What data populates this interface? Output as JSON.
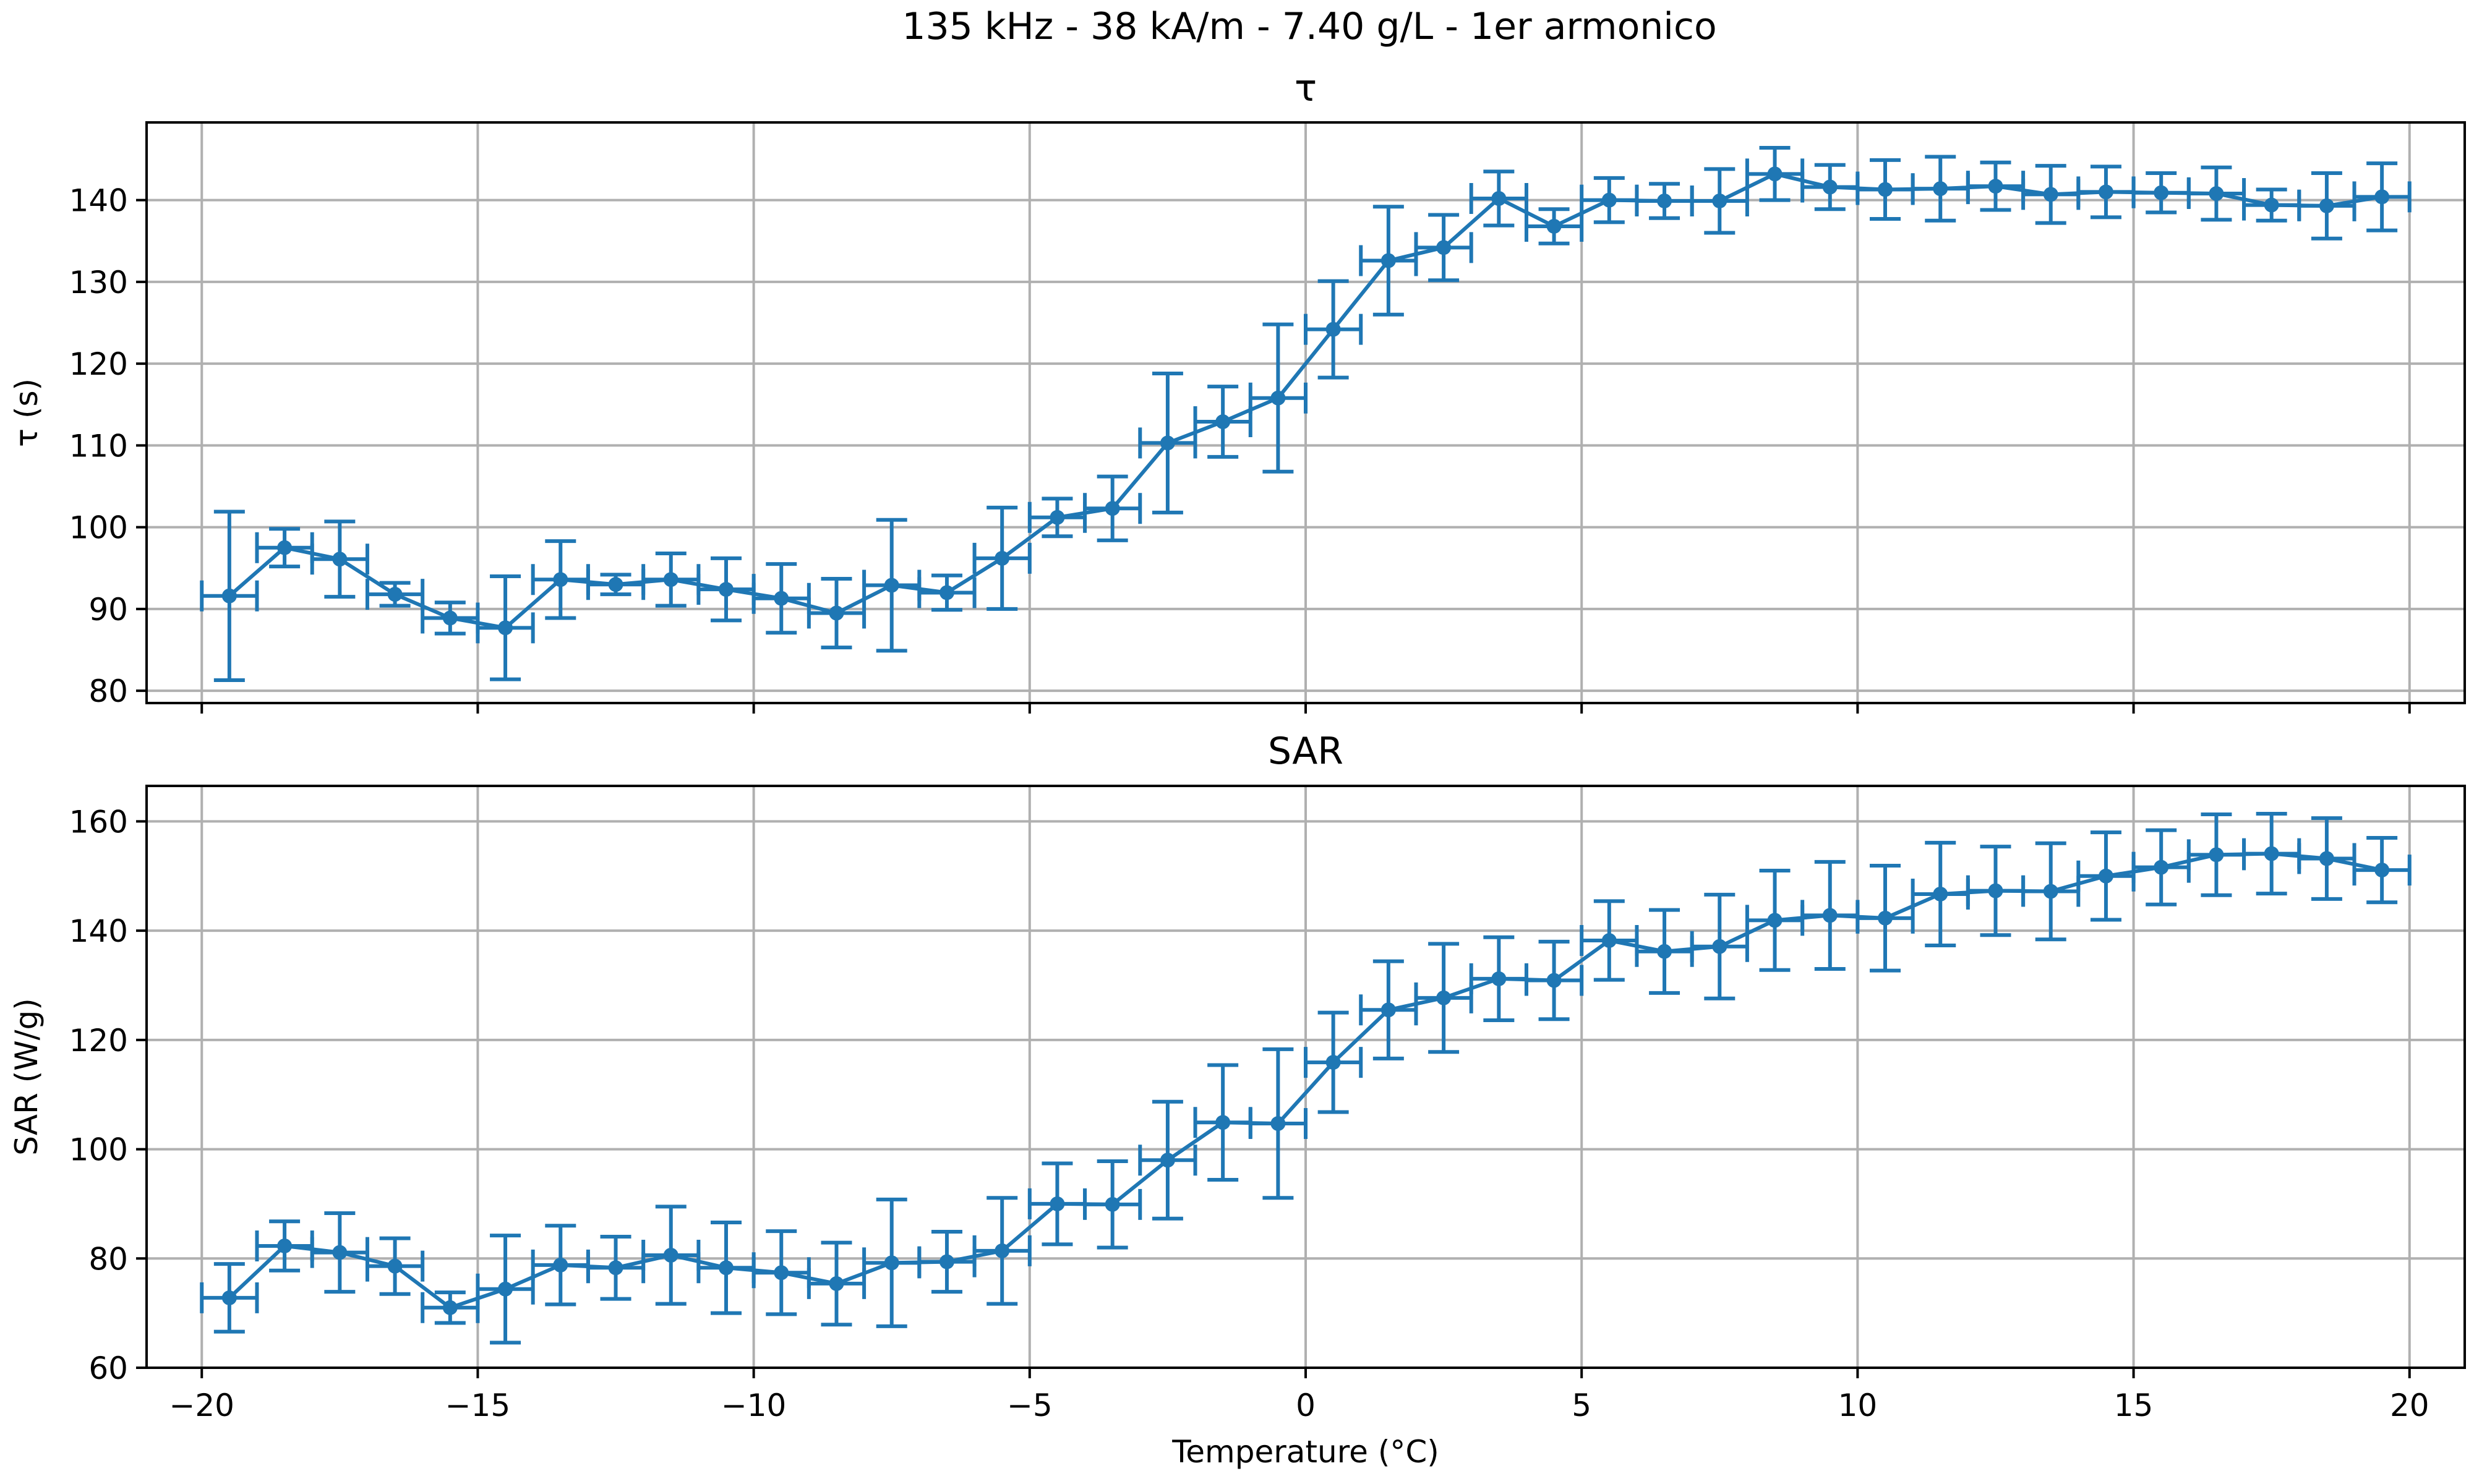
{
  "suptitle": "135 kHz - 38 kA/m - 7.40 g/L - 1er armonico",
  "color": "#1f77b4",
  "chart_data": [
    {
      "type": "line",
      "id": "tau",
      "title": "τ",
      "ylabel": "τ (s)",
      "xlabel": "",
      "xlim": [
        -21,
        21
      ],
      "ylim": [
        78.5,
        149.5
      ],
      "xticks": [
        -20,
        -15,
        -10,
        -5,
        0,
        5,
        10,
        15,
        20
      ],
      "yticks": [
        80,
        90,
        100,
        110,
        120,
        130,
        140
      ],
      "grid": true,
      "series": [
        {
          "x": [
            -19.5,
            -18.5,
            -17.5,
            -16.5,
            -15.5,
            -14.5,
            -13.5,
            -12.5,
            -11.5,
            -10.5,
            -9.5,
            -8.5,
            -7.5,
            -6.5,
            -5.5,
            -4.5,
            -3.5,
            -2.5,
            -1.5,
            -0.5,
            0.5,
            1.5,
            2.5,
            3.5,
            4.5,
            5.5,
            6.5,
            7.5,
            8.5,
            9.5,
            10.5,
            11.5,
            12.5,
            13.5,
            14.5,
            15.5,
            16.5,
            17.5,
            18.5,
            19.5
          ],
          "y": [
            91.6,
            97.5,
            96.1,
            91.8,
            88.9,
            87.7,
            93.6,
            93.0,
            93.6,
            92.4,
            91.3,
            89.5,
            92.9,
            92.0,
            96.2,
            101.2,
            102.3,
            110.3,
            112.9,
            115.8,
            124.2,
            132.6,
            134.2,
            140.2,
            136.8,
            140.0,
            139.9,
            139.9,
            143.2,
            141.6,
            141.3,
            141.4,
            141.7,
            140.7,
            141.0,
            140.9,
            140.8,
            139.4,
            139.3,
            140.4
          ],
          "xerr": [
            0.5,
            0.5,
            0.5,
            0.5,
            0.5,
            0.5,
            0.5,
            0.5,
            0.5,
            0.5,
            0.5,
            0.5,
            0.5,
            0.5,
            0.5,
            0.5,
            0.5,
            0.5,
            0.5,
            0.5,
            0.5,
            0.5,
            0.5,
            0.5,
            0.5,
            0.5,
            0.5,
            0.5,
            0.5,
            0.5,
            0.5,
            0.5,
            0.5,
            0.5,
            0.5,
            0.5,
            0.5,
            0.5,
            0.5,
            0.5
          ],
          "yerr": [
            10.3,
            2.3,
            4.6,
            1.4,
            1.9,
            6.3,
            4.7,
            1.2,
            3.2,
            3.8,
            4.2,
            4.2,
            8.0,
            2.1,
            6.2,
            2.3,
            3.9,
            8.5,
            4.3,
            9.0,
            5.9,
            6.6,
            4.0,
            3.3,
            2.1,
            2.7,
            2.1,
            3.9,
            3.2,
            2.7,
            3.6,
            3.9,
            2.9,
            3.5,
            3.1,
            2.4,
            3.2,
            1.9,
            4.0,
            4.1
          ]
        }
      ]
    },
    {
      "type": "line",
      "id": "sar",
      "title": "SAR",
      "ylabel": "SAR (W/g)",
      "xlabel": "Temperature (°C)",
      "xlim": [
        -21,
        21
      ],
      "ylim": [
        60,
        166.5
      ],
      "xticks": [
        -20,
        -15,
        -10,
        -5,
        0,
        5,
        10,
        15,
        20
      ],
      "yticks": [
        60,
        80,
        100,
        120,
        140,
        160
      ],
      "grid": true,
      "series": [
        {
          "x": [
            -19.5,
            -18.5,
            -17.5,
            -16.5,
            -15.5,
            -14.5,
            -13.5,
            -12.5,
            -11.5,
            -10.5,
            -9.5,
            -8.5,
            -7.5,
            -6.5,
            -5.5,
            -4.5,
            -3.5,
            -2.5,
            -1.5,
            -0.5,
            0.5,
            1.5,
            2.5,
            3.5,
            4.5,
            5.5,
            6.5,
            7.5,
            8.5,
            9.5,
            10.5,
            11.5,
            12.5,
            13.5,
            14.5,
            15.5,
            16.5,
            17.5,
            18.5,
            19.5
          ],
          "y": [
            72.8,
            82.3,
            81.1,
            78.6,
            71.0,
            74.4,
            78.8,
            78.3,
            80.6,
            78.3,
            77.4,
            75.4,
            79.2,
            79.4,
            81.4,
            90.0,
            89.9,
            98.0,
            104.9,
            104.7,
            115.9,
            125.5,
            127.7,
            131.2,
            130.9,
            138.2,
            136.2,
            137.1,
            141.9,
            142.8,
            142.3,
            146.7,
            147.3,
            147.2,
            150.0,
            151.6,
            153.9,
            154.1,
            153.2,
            151.1
          ],
          "xerr": [
            0.5,
            0.5,
            0.5,
            0.5,
            0.5,
            0.5,
            0.5,
            0.5,
            0.5,
            0.5,
            0.5,
            0.5,
            0.5,
            0.5,
            0.5,
            0.5,
            0.5,
            0.5,
            0.5,
            0.5,
            0.5,
            0.5,
            0.5,
            0.5,
            0.5,
            0.5,
            0.5,
            0.5,
            0.5,
            0.5,
            0.5,
            0.5,
            0.5,
            0.5,
            0.5,
            0.5,
            0.5,
            0.5,
            0.5,
            0.5
          ],
          "yerr": [
            6.2,
            4.5,
            7.2,
            5.1,
            2.8,
            9.8,
            7.2,
            5.7,
            8.9,
            8.3,
            7.6,
            7.5,
            11.6,
            5.5,
            9.7,
            7.4,
            7.9,
            10.7,
            10.5,
            13.6,
            9.1,
            8.9,
            9.9,
            7.6,
            7.1,
            7.2,
            7.6,
            9.5,
            9.1,
            9.8,
            9.6,
            9.4,
            8.1,
            8.8,
            8.0,
            6.8,
            7.4,
            7.3,
            7.4,
            5.9
          ]
        }
      ]
    }
  ]
}
